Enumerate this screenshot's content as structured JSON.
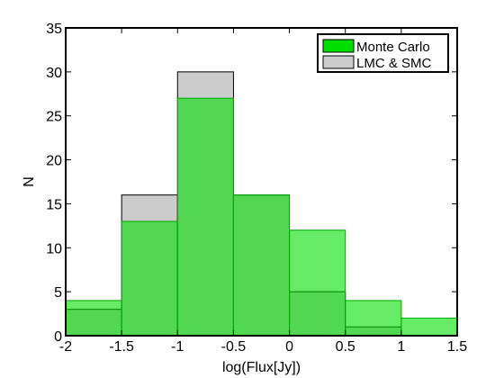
{
  "chart_data": {
    "type": "bar",
    "subtype": "histogram-overlay",
    "xlabel": "log(Flux[Jy])",
    "ylabel": "N",
    "xlim": [
      -2,
      1.5
    ],
    "ylim": [
      0,
      35
    ],
    "xticks": [
      "-2",
      "-1.5",
      "-1",
      "-0.5",
      "0",
      "0.5",
      "1",
      "1.5"
    ],
    "yticks": [
      "0",
      "5",
      "10",
      "15",
      "20",
      "25",
      "30",
      "35"
    ],
    "bin_edges": [
      -2,
      -1.5,
      -1,
      -0.5,
      0,
      0.5,
      1,
      1.5
    ],
    "legend_position": "top-right",
    "grid": false,
    "series": [
      {
        "name": "LMC & SMC",
        "values": [
          3,
          16,
          30,
          16,
          5,
          1,
          0
        ],
        "fill": "#cccccc",
        "stroke": "#000000"
      },
      {
        "name": "Monte Carlo",
        "values": [
          4,
          13,
          27,
          16,
          12,
          4,
          2
        ],
        "fill": "#00dd00",
        "stroke": "#00aa00",
        "opacity": 0.6
      }
    ],
    "legend": [
      {
        "name": "Monte Carlo",
        "fill": "#00dd00"
      },
      {
        "name": "LMC & SMC",
        "fill": "#cccccc"
      }
    ]
  }
}
